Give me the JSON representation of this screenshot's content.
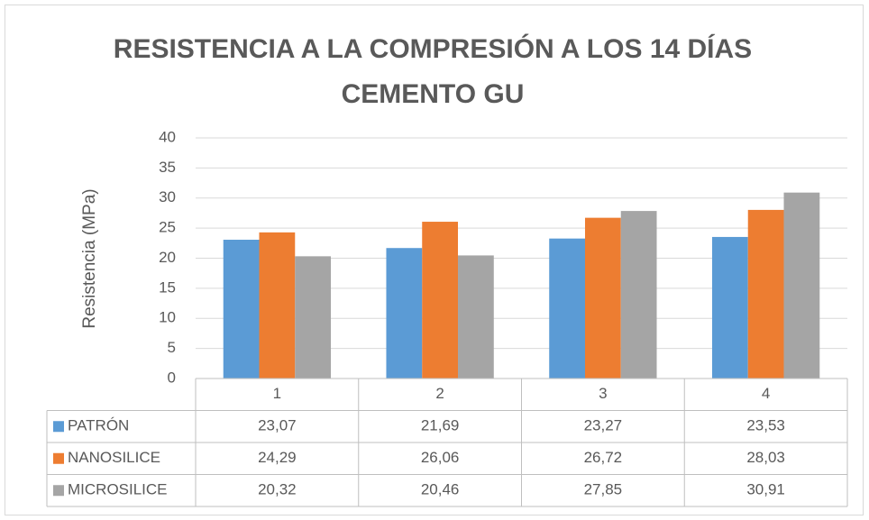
{
  "chart_data": {
    "type": "bar",
    "title": "RESISTENCIA A LA COMPRESIÓN A LOS 14 DÍAS",
    "subtitle": "CEMENTO GU",
    "y_label": "Resistencia (MPa)",
    "categories": [
      "1",
      "2",
      "3",
      "4"
    ],
    "series": [
      {
        "name": "PATRÓN",
        "color": "#5b9bd5",
        "values": [
          23.07,
          21.69,
          23.27,
          23.53
        ],
        "value_labels": [
          "23,07",
          "21,69",
          "23,27",
          "23,53"
        ]
      },
      {
        "name": "NANOSILICE",
        "color": "#ed7d31",
        "values": [
          24.29,
          26.06,
          26.72,
          28.03
        ],
        "value_labels": [
          "24,29",
          "26,06",
          "26,72",
          "28,03"
        ]
      },
      {
        "name": "MICROSILICE",
        "color": "#a5a5a5",
        "values": [
          20.32,
          20.46,
          27.85,
          30.91
        ],
        "value_labels": [
          "20,32",
          "20,46",
          "27,85",
          "30,91"
        ]
      }
    ],
    "ylim": [
      0,
      40
    ],
    "yticks": [
      0,
      5,
      10,
      15,
      20,
      25,
      30,
      35,
      40
    ],
    "grid": true
  }
}
